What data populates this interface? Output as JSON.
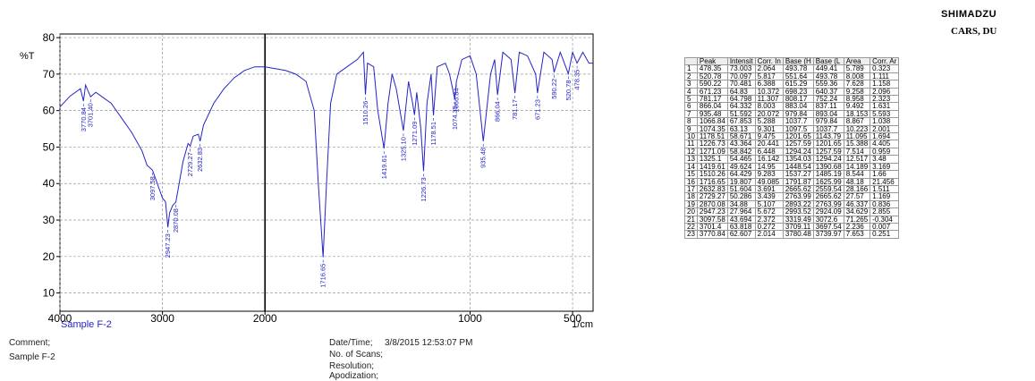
{
  "header": {
    "brand": "SHIMADZU",
    "lab": "CARS, DU"
  },
  "chart_data": {
    "type": "line",
    "color": "#2424c8",
    "y_label": "%T",
    "x_label": "1/cm",
    "sample": "Sample F-2",
    "xlim": [
      4000,
      400
    ],
    "xticks": [
      4000,
      3000,
      2000,
      1000,
      500
    ],
    "xbreak": 2000,
    "xbreak_ratio": 2,
    "ylim": [
      5,
      81
    ],
    "yticks": [
      10,
      20,
      30,
      40,
      50,
      60,
      70,
      80
    ],
    "grid": true,
    "x": [
      4000,
      3900,
      3800,
      3770.84,
      3750,
      3701.4,
      3650,
      3600,
      3500,
      3400,
      3300,
      3200,
      3150,
      3097.58,
      3050,
      3000,
      2970,
      2947.23,
      2930,
      2900,
      2870.08,
      2850,
      2800,
      2750,
      2729.27,
      2700,
      2650,
      2632.83,
      2600,
      2500,
      2400,
      2300,
      2200,
      2100,
      2000,
      1950,
      1900,
      1850,
      1800,
      1760,
      1740,
      1716.65,
      1700,
      1680,
      1650,
      1600,
      1550,
      1520,
      1510.26,
      1500,
      1470,
      1450,
      1419.61,
      1400,
      1380,
      1360,
      1325.1,
      1300,
      1280,
      1271.09,
      1260,
      1240,
      1226.73,
      1210,
      1190,
      1178.51,
      1160,
      1120,
      1100,
      1074.35,
      1066.84,
      1040,
      1000,
      970,
      935.48,
      900,
      880,
      866.04,
      840,
      800,
      781.17,
      760,
      720,
      680,
      671.23,
      640,
      600,
      590.22,
      560,
      520.78,
      500,
      478.35,
      450,
      420,
      400
    ],
    "values": [
      61,
      64,
      66,
      62.6,
      67,
      63.8,
      65,
      64,
      62,
      58,
      54,
      49,
      45,
      43.7,
      40,
      36,
      35,
      28,
      32,
      34,
      34.9,
      38,
      46,
      51,
      50.3,
      53,
      53.5,
      51.6,
      56,
      62,
      66,
      69,
      71,
      72,
      72,
      71.5,
      71,
      70,
      68,
      60,
      40,
      19.8,
      40,
      62,
      70,
      72,
      74,
      76,
      64.4,
      73,
      72,
      60,
      49.6,
      62,
      70,
      66,
      54.5,
      68,
      62,
      58.8,
      65,
      55,
      43.4,
      62,
      70,
      58.7,
      72,
      73,
      70,
      63.1,
      67.9,
      74,
      75,
      70,
      51.6,
      70,
      74,
      64.3,
      76,
      74,
      64.8,
      76,
      75,
      70,
      64.8,
      76,
      74,
      70.5,
      76,
      70.1,
      76,
      73,
      76,
      73,
      73
    ],
    "peak_labels": [
      {
        "value": 3770.84,
        "label": "3770.84"
      },
      {
        "value": 3701.4,
        "label": "3701.40"
      },
      {
        "value": 3097.58,
        "label": "3097.58"
      },
      {
        "value": 2947.23,
        "label": "2947.23"
      },
      {
        "value": 2870.08,
        "label": "2870.08"
      },
      {
        "value": 2729.27,
        "label": "2729.27"
      },
      {
        "value": 2632.83,
        "label": "2632.83"
      },
      {
        "value": 1716.65,
        "label": "1716.65"
      },
      {
        "value": 1510.26,
        "label": "1510.26"
      },
      {
        "value": 1419.61,
        "label": "1419.61"
      },
      {
        "value": 1325.1,
        "label": "1325.10"
      },
      {
        "value": 1271.09,
        "label": "1271.09"
      },
      {
        "value": 1226.73,
        "label": "1226.73"
      },
      {
        "value": 1178.51,
        "label": "1178.51"
      },
      {
        "value": 1074.35,
        "label": "1074.35"
      },
      {
        "value": 1066.84,
        "label": "1066.84"
      },
      {
        "value": 935.48,
        "label": "935.48"
      },
      {
        "value": 866.04,
        "label": "866.04"
      },
      {
        "value": 781.17,
        "label": "781.17"
      },
      {
        "value": 671.23,
        "label": "671.23"
      },
      {
        "value": 590.22,
        "label": "590.22"
      },
      {
        "value": 520.78,
        "label": "520.78"
      },
      {
        "value": 478.35,
        "label": "478.35"
      }
    ]
  },
  "table": {
    "columns": [
      "",
      "Peak",
      "Intensit",
      "Corr. In",
      "Base (H",
      "Base (L",
      "Area",
      "Corr. Ar"
    ],
    "rows": [
      [
        "1",
        "478.35",
        "73.003",
        "2.064",
        "493.78",
        "449.41",
        "5.789",
        "0.323"
      ],
      [
        "2",
        "520.78",
        "70.097",
        "5.817",
        "551.64",
        "493.78",
        "8.008",
        "1.111"
      ],
      [
        "3",
        "590.22",
        "70.481",
        "6.388",
        "615.29",
        "559.36",
        "7.628",
        "1.158"
      ],
      [
        "4",
        "671.23",
        "64.83",
        "10.372",
        "698.23",
        "640.37",
        "9.258",
        "2.096"
      ],
      [
        "5",
        "781.17",
        "64.798",
        "11.307",
        "808.17",
        "752.24",
        "8.958",
        "2.323"
      ],
      [
        "6",
        "866.04",
        "64.332",
        "8.003",
        "883.04",
        "837.11",
        "9.492",
        "1.631"
      ],
      [
        "7",
        "935.48",
        "51.592",
        "20.072",
        "979.84",
        "893.04",
        "18.153",
        "5.593"
      ],
      [
        "8",
        "1066.84",
        "67.853",
        "5.288",
        "1037.7",
        "979.84",
        "8.867",
        "1.038"
      ],
      [
        "9",
        "1074.35",
        "63.13",
        "9.301",
        "1097.5",
        "1037.7",
        "10.223",
        "2.001"
      ],
      [
        "10",
        "1178.51",
        "58.671",
        "9.475",
        "1201.65",
        "1143.79",
        "11.095",
        "1.694"
      ],
      [
        "11",
        "1226.73",
        "43.364",
        "20.441",
        "1257.59",
        "1201.65",
        "15.388",
        "4.405"
      ],
      [
        "12",
        "1271.09",
        "58.842",
        "6.448",
        "1294.24",
        "1257.59",
        "7.514",
        "0.959"
      ],
      [
        "13",
        "1325.1",
        "54.465",
        "16.142",
        "1354.03",
        "1294.24",
        "12.517",
        "3.48"
      ],
      [
        "14",
        "1419.61",
        "49.624",
        "14.95",
        "1448.54",
        "1390.68",
        "14.189",
        "3.169"
      ],
      [
        "15",
        "1510.26",
        "64.429",
        "9.283",
        "1537.27",
        "1485.19",
        "8.544",
        "1.66"
      ],
      [
        "16",
        "1716.65",
        "19.807",
        "49.085",
        "1791.87",
        "1625.99",
        "48.18",
        "21.456"
      ],
      [
        "17",
        "2632.83",
        "51.604",
        "3.691",
        "2665.62",
        "2559.54",
        "28.166",
        "1.511"
      ],
      [
        "18",
        "2729.27",
        "50.286",
        "3.439",
        "2763.99",
        "2665.62",
        "27.57",
        "1.169"
      ],
      [
        "19",
        "2870.08",
        "34.88",
        "5.107",
        "2893.22",
        "2763.99",
        "46.337",
        "0.836"
      ],
      [
        "20",
        "2947.23",
        "27.964",
        "5.672",
        "2993.52",
        "2924.09",
        "34.629",
        "2.855"
      ],
      [
        "21",
        "3097.58",
        "43.694",
        "2.372",
        "3319.49",
        "3072.6",
        "71.265",
        "-0.304"
      ],
      [
        "22",
        "3701.4",
        "63.818",
        "0.272",
        "3709.11",
        "3697.54",
        "2.236",
        "0.007"
      ],
      [
        "23",
        "3770.84",
        "62.607",
        "2.014",
        "3780.48",
        "3739.97",
        "7.653",
        "0.251"
      ]
    ]
  },
  "footer": {
    "comment_label": "Comment;",
    "comment": "Sample F-2",
    "date_label": "Date/Time;",
    "date": "3/8/2015 12:53:07 PM",
    "scans_label": "No. of Scans;",
    "resolution_label": "Resolution;",
    "apodization_label": "Apodization;"
  }
}
